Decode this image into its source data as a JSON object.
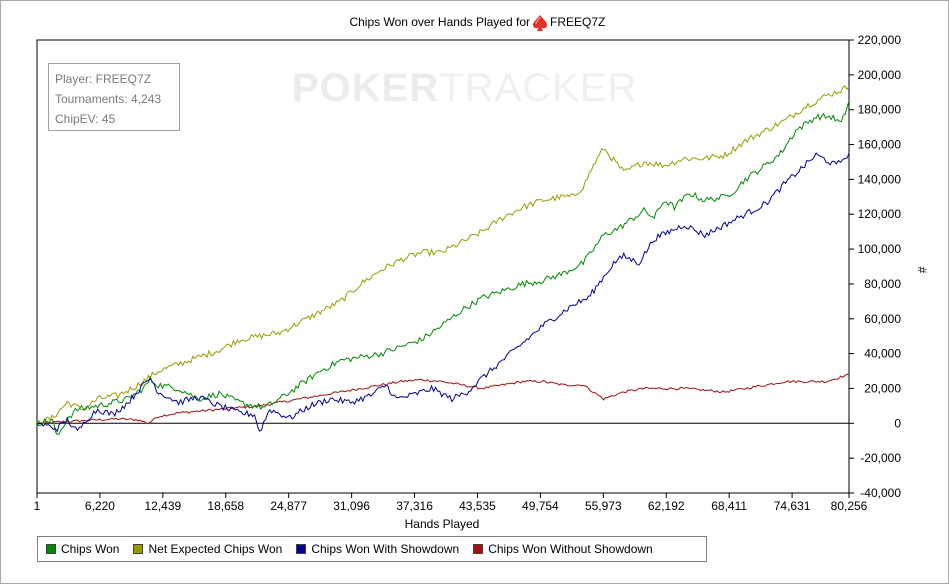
{
  "info": {
    "player": "Player: FREEQ7Z",
    "tournaments": "Tournaments: 4,243",
    "chipev": "ChipEV: 45"
  },
  "watermark": {
    "part1": "POKER",
    "part2": "TRACKER"
  },
  "colors": {
    "chips_won": "#008a00",
    "net_expected": "#9a9a00",
    "showdown": "#000096",
    "no_showdown": "#a01010"
  },
  "chart_data": {
    "type": "line",
    "title": "Chips Won over Hands Played for",
    "title_player": "FREEQ7Z",
    "title_icon": "spade-icon",
    "xlabel": "Hands Played",
    "ylabel": "#",
    "xlim": [
      1,
      80256
    ],
    "ylim": [
      -40000,
      220000
    ],
    "x_ticks": [
      "1",
      "6,220",
      "12,439",
      "18,658",
      "24,877",
      "31,096",
      "37,316",
      "43,535",
      "49,754",
      "55,973",
      "62,192",
      "68,411",
      "74,631",
      "80,256"
    ],
    "x_tick_values": [
      1,
      6220,
      12439,
      18658,
      24877,
      31096,
      37316,
      43535,
      49754,
      55973,
      62192,
      68411,
      74631,
      80256
    ],
    "y_ticks": [
      "-40,000",
      "-20,000",
      "0",
      "20,000",
      "40,000",
      "60,000",
      "80,000",
      "100,000",
      "120,000",
      "140,000",
      "160,000",
      "180,000",
      "200,000",
      "220,000"
    ],
    "y_tick_values": [
      -40000,
      -20000,
      0,
      20000,
      40000,
      60000,
      80000,
      100000,
      120000,
      140000,
      160000,
      180000,
      200000,
      220000
    ],
    "legend_position": "bottom",
    "grid": false,
    "series": [
      {
        "name": "Chips Won",
        "color": "#008a00",
        "x": [
          0,
          1500,
          2000,
          3000,
          4000,
          6000,
          7500,
          9000,
          10500,
          11200,
          12000,
          14000,
          16000,
          18000,
          20000,
          21500,
          22500,
          24000,
          26000,
          28000,
          30000,
          32000,
          34000,
          36000,
          38000,
          40000,
          42000,
          44000,
          46000,
          48000,
          50000,
          52000,
          54000,
          55000,
          56000,
          57500,
          59000,
          60000,
          61000,
          62000,
          63000,
          64500,
          66000,
          68000,
          69000,
          70000,
          72000,
          73500,
          75000,
          77000,
          78500,
          79500,
          80256
        ],
        "y": [
          0,
          2000,
          -8000,
          3000,
          8000,
          10000,
          12000,
          14000,
          20000,
          25000,
          22000,
          20000,
          14000,
          17000,
          12000,
          10000,
          9000,
          14000,
          22000,
          30000,
          36000,
          38000,
          40000,
          44000,
          48000,
          56000,
          65000,
          72000,
          76000,
          80000,
          82000,
          86000,
          92000,
          100000,
          108000,
          112000,
          118000,
          122000,
          118000,
          128000,
          124000,
          132000,
          128000,
          130000,
          134000,
          140000,
          148000,
          155000,
          168000,
          176000,
          176000,
          172000,
          185000
        ]
      },
      {
        "name": "Net Expected Chips Won",
        "color": "#9a9a00",
        "x": [
          0,
          1500,
          3000,
          4500,
          6000,
          8000,
          10000,
          12000,
          14000,
          16000,
          18000,
          20000,
          22000,
          24000,
          26000,
          28000,
          30000,
          32000,
          34000,
          36000,
          38000,
          40000,
          42000,
          44000,
          46000,
          48000,
          50000,
          52000,
          53000,
          54000,
          55000,
          56000,
          58000,
          60000,
          62000,
          64000,
          66000,
          68000,
          70000,
          72000,
          74000,
          76000,
          78000,
          80256
        ],
        "y": [
          0,
          3000,
          12000,
          8000,
          14000,
          16000,
          22000,
          30000,
          34000,
          38000,
          42000,
          48000,
          50000,
          52000,
          58000,
          64000,
          70000,
          80000,
          88000,
          94000,
          98000,
          98000,
          104000,
          110000,
          118000,
          124000,
          128000,
          130000,
          130000,
          136000,
          148000,
          158000,
          144000,
          150000,
          148000,
          152000,
          152000,
          154000,
          162000,
          168000,
          174000,
          182000,
          188000,
          193000
        ]
      },
      {
        "name": "Chips Won With Showdown",
        "color": "#000096",
        "x": [
          0,
          2000,
          3000,
          4000,
          5000,
          6000,
          7500,
          9000,
          10500,
          11200,
          12000,
          14000,
          16000,
          18000,
          20000,
          21500,
          22000,
          23000,
          25000,
          27000,
          29000,
          31000,
          33000,
          34500,
          35500,
          37000,
          39000,
          41000,
          42500,
          44000,
          46000,
          48000,
          50000,
          51500,
          53000,
          54500,
          56000,
          57000,
          58000,
          59500,
          61000,
          62500,
          64000,
          66000,
          68000,
          70000,
          72000,
          74000,
          75500,
          77000,
          79000,
          80256
        ],
        "y": [
          0,
          -3000,
          2000,
          -5000,
          3000,
          8000,
          5000,
          12000,
          22000,
          26000,
          18000,
          12000,
          15000,
          10000,
          6000,
          5000,
          -5000,
          8000,
          3000,
          10000,
          14000,
          12000,
          16000,
          22000,
          14000,
          16000,
          20000,
          14000,
          18000,
          26000,
          36000,
          46000,
          56000,
          62000,
          68000,
          72000,
          84000,
          92000,
          96000,
          92000,
          106000,
          110000,
          114000,
          108000,
          114000,
          120000,
          126000,
          138000,
          146000,
          154000,
          148000,
          155000
        ]
      },
      {
        "name": "Chips Won Without Showdown",
        "color": "#a01010",
        "x": [
          0,
          3000,
          6000,
          8000,
          10000,
          11000,
          12000,
          14000,
          18000,
          22000,
          24000,
          28000,
          32000,
          36000,
          38000,
          40000,
          44000,
          46000,
          48000,
          50000,
          52000,
          54000,
          55000,
          56000,
          58000,
          60000,
          64000,
          68000,
          70000,
          74000,
          78000,
          80256
        ],
        "y": [
          0,
          1000,
          2000,
          2500,
          2000,
          0,
          4000,
          6000,
          8000,
          10000,
          12000,
          16000,
          20000,
          24000,
          25000,
          24000,
          20000,
          22000,
          24000,
          24000,
          22000,
          22000,
          18000,
          14000,
          18000,
          20000,
          20000,
          18000,
          20000,
          24000,
          24000,
          28000
        ]
      }
    ]
  },
  "legend": [
    {
      "label": "Chips Won",
      "color": "#008a00"
    },
    {
      "label": "Net Expected Chips Won",
      "color": "#9a9a00"
    },
    {
      "label": "Chips Won With Showdown",
      "color": "#000096"
    },
    {
      "label": "Chips Won Without Showdown",
      "color": "#a01010"
    }
  ]
}
